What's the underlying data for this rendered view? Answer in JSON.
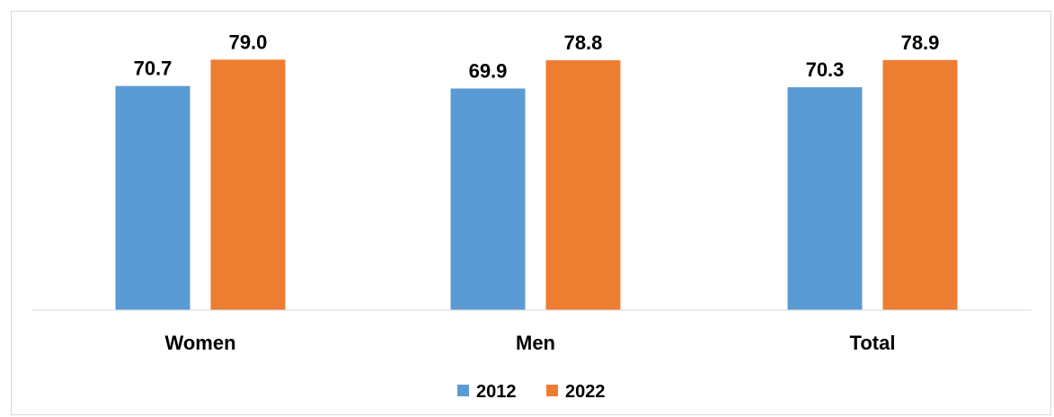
{
  "chart_data": {
    "type": "bar",
    "categories": [
      "Women",
      "Men",
      "Total"
    ],
    "series": [
      {
        "name": "2012",
        "values": [
          70.7,
          69.9,
          70.3
        ],
        "value_labels": [
          "70.7",
          "69.9",
          "70.3"
        ]
      },
      {
        "name": "2022",
        "values": [
          79.0,
          78.8,
          78.9
        ],
        "value_labels": [
          "79.0",
          "78.8",
          "78.9"
        ]
      }
    ],
    "title": "",
    "xlabel": "",
    "ylabel": "",
    "ylim": [
      0,
      95
    ],
    "grid": false,
    "y_axis_visible": false,
    "legend_position": "bottom-center",
    "colors": {
      "2012": "#5b9bd5",
      "2022": "#ed7d31"
    }
  }
}
